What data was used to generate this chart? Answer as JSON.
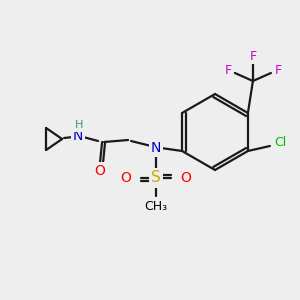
{
  "bg_color": "#eeeeee",
  "atom_colors": {
    "C": "#000000",
    "N": "#0000cc",
    "O": "#ff0000",
    "S": "#ccaa00",
    "F": "#cc00cc",
    "Cl": "#00bb00",
    "H": "#4a8a8a"
  },
  "bond_color": "#1a1a1a",
  "figsize": [
    3.0,
    3.0
  ],
  "dpi": 100
}
